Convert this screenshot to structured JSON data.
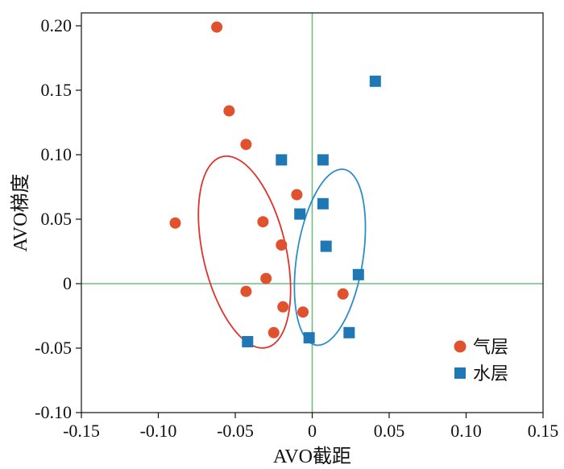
{
  "chart_data": {
    "type": "scatter",
    "xlabel": "AVO截距",
    "ylabel": "AVO梯度",
    "xlim": [
      -0.15,
      0.15
    ],
    "ylim": [
      -0.1,
      0.21
    ],
    "x_ticks": [
      -0.15,
      -0.1,
      -0.05,
      0,
      0.05,
      0.1,
      0.15
    ],
    "x_tick_labels": [
      "-0.15",
      "-0.10",
      "-0.05",
      "0",
      "0.05",
      "0.10",
      "0.15"
    ],
    "y_ticks": [
      -0.1,
      -0.05,
      0,
      0.05,
      0.1,
      0.15,
      0.2
    ],
    "y_tick_labels": [
      "-0.10",
      "-0.05",
      "0",
      "0.05",
      "0.10",
      "0.15",
      "0.20"
    ],
    "grid": false,
    "reference_lines": {
      "x": 0,
      "y": 0,
      "color": "#6dbf7f"
    },
    "legend_position": "bottom-right",
    "series": [
      {
        "name": "气层",
        "marker": "circle",
        "color": "#e0522d",
        "points": [
          [
            -0.062,
            0.199
          ],
          [
            -0.054,
            0.134
          ],
          [
            -0.043,
            0.108
          ],
          [
            -0.089,
            0.047
          ],
          [
            -0.032,
            0.048
          ],
          [
            -0.01,
            0.069
          ],
          [
            -0.02,
            0.03
          ],
          [
            -0.03,
            0.004
          ],
          [
            -0.043,
            -0.006
          ],
          [
            -0.019,
            -0.018
          ],
          [
            -0.006,
            -0.022
          ],
          [
            -0.025,
            -0.038
          ],
          [
            0.02,
            -0.008
          ]
        ]
      },
      {
        "name": "水层",
        "marker": "square",
        "color": "#1f78b4",
        "points": [
          [
            0.041,
            0.157
          ],
          [
            -0.02,
            0.096
          ],
          [
            0.007,
            0.096
          ],
          [
            0.007,
            0.062
          ],
          [
            -0.008,
            0.054
          ],
          [
            0.009,
            0.029
          ],
          [
            0.03,
            0.007
          ],
          [
            -0.042,
            -0.045
          ],
          [
            -0.002,
            -0.042
          ],
          [
            0.024,
            -0.038
          ]
        ]
      }
    ],
    "ellipses": [
      {
        "series": "气层",
        "color": "#e0322d",
        "cx": -0.044,
        "cy": 0.0245,
        "rx": 0.027,
        "ry": 0.076,
        "rotation_deg": -13
      },
      {
        "series": "水层",
        "color": "#2a8ec8",
        "cx": 0.0115,
        "cy": 0.0205,
        "rx": 0.0215,
        "ry": 0.069,
        "rotation_deg": 9
      }
    ]
  }
}
